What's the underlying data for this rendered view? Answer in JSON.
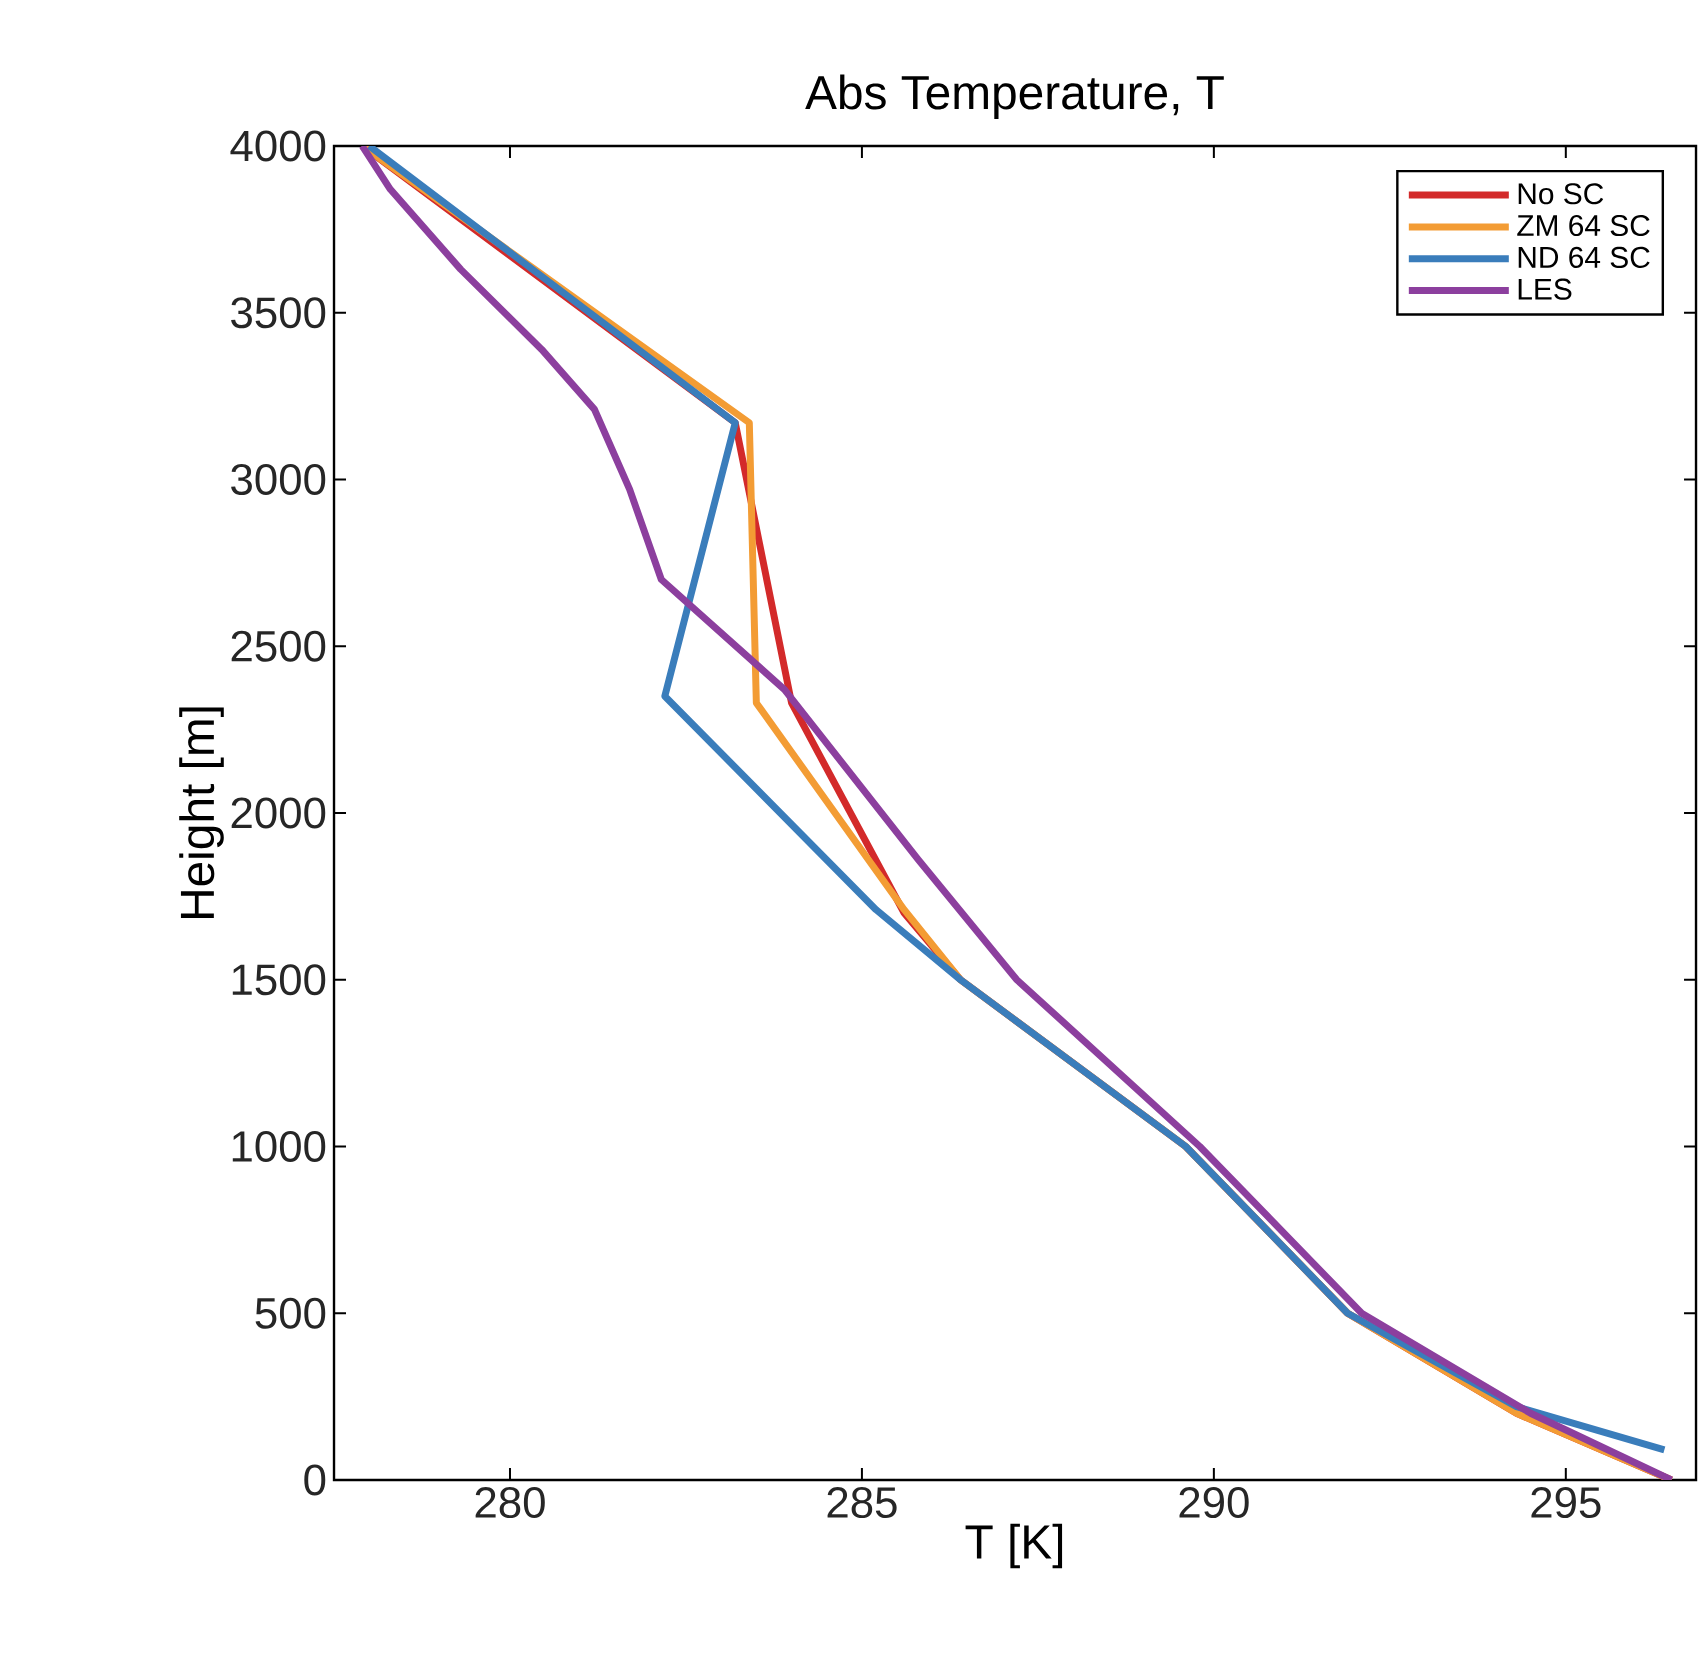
{
  "chart_data": {
    "type": "line",
    "title": "Abs Temperature, T",
    "xlabel": "T [K]",
    "ylabel": "Height [m]",
    "xlim": [
      277.5,
      296.85
    ],
    "ylim": [
      0,
      4000
    ],
    "xticks": [
      280,
      285,
      290,
      295
    ],
    "yticks": [
      0,
      500,
      1000,
      1500,
      2000,
      2500,
      3000,
      3500,
      4000
    ],
    "grid": false,
    "legend": "top right",
    "line_style": "solid",
    "marker": "none",
    "series": [
      {
        "name": "No SC",
        "color": "#d32a2a",
        "x": [
          277.9,
          283.2,
          284.0,
          285.6,
          286.4,
          289.6,
          291.9,
          294.3,
          296.5
        ],
        "values": [
          4000,
          3170,
          2330,
          1700,
          1500,
          1000,
          500,
          200,
          0
        ]
      },
      {
        "name": "ZM 64 SC",
        "color": "#f39c34",
        "x": [
          277.9,
          283.4,
          283.5,
          285.6,
          286.4,
          289.6,
          291.9,
          294.3,
          296.5
        ],
        "values": [
          4000,
          3170,
          2330,
          1710,
          1500,
          1000,
          500,
          200,
          0
        ]
      },
      {
        "name": "ND 64 SC",
        "color": "#3a7dbb",
        "x": [
          278.0,
          283.2,
          282.2,
          285.2,
          286.4,
          289.6,
          291.9,
          294.3,
          296.4
        ],
        "values": [
          4000,
          3170,
          2350,
          1710,
          1500,
          1000,
          500,
          220,
          90
        ]
      },
      {
        "name": "LES",
        "color": "#8c3f9e",
        "x": [
          277.9,
          278.3,
          279.3,
          280.45,
          281.2,
          281.7,
          282.15,
          283.9,
          285.8,
          287.2,
          289.8,
          292.1,
          294.5,
          296.5
        ],
        "values": [
          4000,
          3870,
          3630,
          3390,
          3210,
          2970,
          2700,
          2370,
          1860,
          1500,
          1000,
          500,
          200,
          0
        ]
      }
    ]
  }
}
